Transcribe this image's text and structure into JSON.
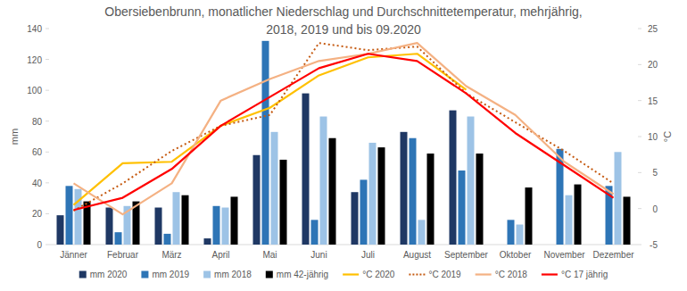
{
  "chart_data": {
    "type": "bar",
    "title": "Obersiebenbrunn, monatlicher Niederschlag und Durchschnittetemperatur, mehrjährig, 2018, 2019 und bis 09.2020",
    "y_label": "mm",
    "y2_label": "°C",
    "categories": [
      "Jänner",
      "Februar",
      "März",
      "April",
      "Mai",
      "Juni",
      "Juli",
      "August",
      "September",
      "Oktober",
      "November",
      "Dezember"
    ],
    "ylim": [
      0,
      140
    ],
    "yticks": [
      0,
      20,
      40,
      60,
      80,
      100,
      120,
      140
    ],
    "y2lim": [
      -5,
      25
    ],
    "y2ticks": [
      -5,
      0,
      5,
      10,
      15,
      20,
      25
    ],
    "grid": false,
    "legend": "bottom",
    "series": [
      {
        "name": "mm 2020",
        "type": "bar",
        "color": "#1f3864",
        "values": [
          19,
          24,
          24,
          4,
          58,
          98,
          34,
          73,
          87,
          null,
          null,
          null
        ]
      },
      {
        "name": "mm 2019",
        "type": "bar",
        "color": "#2e75b6",
        "values": [
          38,
          8,
          7,
          25,
          132,
          16,
          42,
          69,
          48,
          16,
          62,
          38
        ]
      },
      {
        "name": "mm 2018",
        "type": "bar",
        "color": "#9dc3e6",
        "values": [
          36,
          25,
          34,
          24,
          73,
          83,
          66,
          16,
          83,
          13,
          32,
          60
        ]
      },
      {
        "name": "mm 42-jährig",
        "type": "bar",
        "color": "#000000",
        "values": [
          28,
          28,
          32,
          31,
          55,
          69,
          63,
          59,
          59,
          37,
          39,
          31
        ]
      },
      {
        "name": "°C 2020",
        "type": "line",
        "axis": "y2",
        "color": "#ffc000",
        "line_style": "solid",
        "values": [
          0.5,
          6.3,
          6.5,
          11.5,
          14,
          18.5,
          21,
          21.5,
          16.5,
          null,
          null,
          null
        ]
      },
      {
        "name": "°C 2019",
        "type": "line",
        "axis": "y2",
        "color": "#c55a11",
        "line_style": "dotted",
        "values": [
          -0.3,
          3.5,
          8,
          11.5,
          13,
          23,
          22,
          22.5,
          16,
          12,
          8,
          3.5
        ]
      },
      {
        "name": "°C 2018",
        "type": "line",
        "axis": "y2",
        "color": "#f4b183",
        "line_style": "solid",
        "values": [
          3.5,
          -0.8,
          3.5,
          15,
          18,
          20.5,
          21.5,
          23,
          17,
          13,
          6.5,
          2
        ]
      },
      {
        "name": "°C 17 jährig",
        "type": "line",
        "axis": "y2",
        "color": "#ff0000",
        "line_style": "solid",
        "values": [
          -0.2,
          1.5,
          5.5,
          11.5,
          15.5,
          19.5,
          21.5,
          20.5,
          16,
          10.5,
          6,
          1.5
        ]
      }
    ]
  }
}
